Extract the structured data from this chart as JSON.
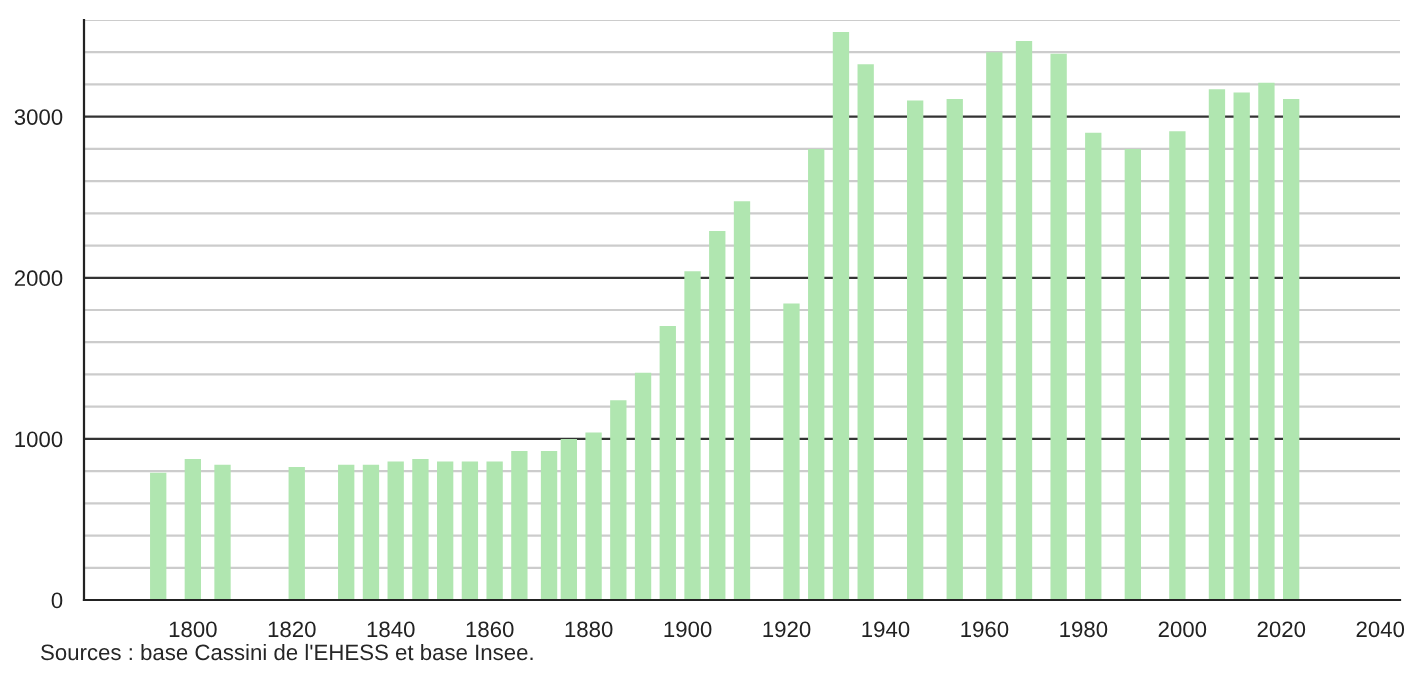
{
  "chart_data": {
    "type": "bar",
    "x": [
      1793,
      1800,
      1806,
      1821,
      1831,
      1836,
      1841,
      1846,
      1851,
      1856,
      1861,
      1866,
      1872,
      1876,
      1881,
      1886,
      1891,
      1896,
      1901,
      1906,
      1911,
      1921,
      1926,
      1931,
      1936,
      1946,
      1954,
      1962,
      1968,
      1975,
      1982,
      1990,
      1999,
      2007,
      2012,
      2017,
      2022
    ],
    "series": [
      {
        "color": "#b0e6b0",
        "values": [
          790,
          875,
          840,
          825,
          840,
          840,
          860,
          875,
          860,
          860,
          860,
          925,
          925,
          1000,
          1040,
          1240,
          1410,
          1700,
          2040,
          2290,
          2475,
          1840,
          2800,
          3525,
          3325,
          3100,
          3110,
          3400,
          3470,
          3390,
          2900,
          2800,
          2910,
          3170,
          3150,
          3210,
          3110
        ]
      }
    ],
    "xlim": [
      1778,
      2044
    ],
    "xticks": [
      1800,
      1820,
      1840,
      1860,
      1880,
      1900,
      1920,
      1940,
      1960,
      1980,
      2000,
      2020,
      2040
    ],
    "ylim": [
      0,
      3600
    ],
    "yticks": [
      0,
      {
        "value": 200,
        "label": null
      },
      {
        "value": 400,
        "label": null
      },
      {
        "value": 600,
        "label": null
      },
      {
        "value": 800,
        "label": null
      },
      1000,
      {
        "value": 1200,
        "label": null
      },
      {
        "value": 1400,
        "label": null
      },
      {
        "value": 1600,
        "label": null
      },
      {
        "value": 1800,
        "label": null
      },
      2000,
      {
        "value": 2200,
        "label": null
      },
      {
        "value": 2400,
        "label": null
      },
      {
        "value": 2600,
        "label": null
      },
      {
        "value": 2800,
        "label": null
      },
      3000,
      {
        "value": 3200,
        "label": null
      },
      {
        "value": 3400,
        "label": null
      },
      {
        "value": 3600,
        "label": null
      }
    ],
    "grid": "y",
    "legend": false,
    "annotations": [
      "Sources : base Cassini de l'EHESS et base Insee."
    ]
  }
}
